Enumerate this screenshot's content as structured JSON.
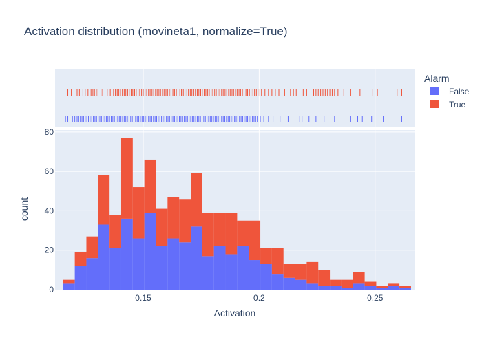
{
  "chart_data": {
    "type": "bar",
    "barmode": "stack",
    "title": "Activation distribution (movineta1, normalize=True)",
    "xlabel": "Activation",
    "ylabel": "count",
    "xlim": [
      0.112,
      0.267
    ],
    "ylim": [
      0,
      81
    ],
    "x_ticks": [
      0.15,
      0.2,
      0.25
    ],
    "x_tick_labels": [
      "0.15",
      "0.2",
      "0.25"
    ],
    "y_ticks": [
      0,
      20,
      40,
      60,
      80
    ],
    "y_tick_labels": [
      "0",
      "20",
      "40",
      "60",
      "80"
    ],
    "grid": true,
    "legend_title": "Alarm",
    "legend_position": "top-right",
    "bin_start": 0.1155,
    "bin_width": 0.005,
    "series": [
      {
        "name": "False",
        "color": "#636efa",
        "values": [
          3,
          12,
          16,
          33,
          21,
          36,
          26,
          39,
          22,
          26,
          24,
          32,
          17,
          22,
          18,
          22,
          15,
          13,
          8,
          6,
          5,
          3,
          2,
          2,
          1,
          3,
          2,
          1,
          2,
          1
        ]
      },
      {
        "name": "True",
        "color": "#ef553b",
        "values": [
          2,
          7,
          11,
          25,
          17,
          41,
          26,
          27,
          19,
          21,
          22,
          27,
          22,
          17,
          21,
          13,
          20,
          8,
          13,
          7,
          8,
          11,
          8,
          3,
          4,
          6,
          2,
          1,
          1,
          1
        ]
      }
    ],
    "rug": {
      "True": [
        0.1175,
        0.119,
        0.1215,
        0.1225,
        0.124,
        0.125,
        0.1262,
        0.1275,
        0.1283,
        0.129,
        0.1298,
        0.1305,
        0.1318,
        0.1325,
        0.1345,
        0.1358,
        0.1365,
        0.1372,
        0.138,
        0.1388,
        0.1395,
        0.1402,
        0.141,
        0.1418,
        0.1425,
        0.1433,
        0.144,
        0.1448,
        0.1455,
        0.1463,
        0.147,
        0.1478,
        0.1485,
        0.1493,
        0.15,
        0.1508,
        0.1515,
        0.1523,
        0.153,
        0.1538,
        0.1545,
        0.1553,
        0.156,
        0.1568,
        0.1575,
        0.1583,
        0.159,
        0.1598,
        0.1605,
        0.1613,
        0.162,
        0.1628,
        0.1635,
        0.1643,
        0.165,
        0.1658,
        0.1665,
        0.1673,
        0.168,
        0.1688,
        0.1695,
        0.1703,
        0.171,
        0.1718,
        0.1725,
        0.1733,
        0.174,
        0.1748,
        0.1755,
        0.1763,
        0.177,
        0.1778,
        0.1785,
        0.1793,
        0.18,
        0.1808,
        0.1815,
        0.1823,
        0.183,
        0.1838,
        0.1845,
        0.1853,
        0.186,
        0.1868,
        0.1875,
        0.1883,
        0.189,
        0.1898,
        0.1905,
        0.1913,
        0.192,
        0.1928,
        0.1935,
        0.1943,
        0.195,
        0.1958,
        0.1965,
        0.1973,
        0.198,
        0.1988,
        0.1995,
        0.2003,
        0.201,
        0.2025,
        0.204,
        0.2055,
        0.207,
        0.2085,
        0.211,
        0.2135,
        0.2148,
        0.216,
        0.219,
        0.2205,
        0.2235,
        0.2245,
        0.2255,
        0.2265,
        0.2275,
        0.2285,
        0.2295,
        0.2305,
        0.2315,
        0.2325,
        0.234,
        0.2365,
        0.2395,
        0.2435,
        0.249,
        0.251,
        0.2595,
        0.2615
      ],
      "False": [
        0.1165,
        0.1175,
        0.1195,
        0.1205,
        0.1215,
        0.1222,
        0.1229,
        0.1236,
        0.1243,
        0.125,
        0.1257,
        0.1264,
        0.1271,
        0.1278,
        0.1285,
        0.1292,
        0.1299,
        0.1306,
        0.1313,
        0.132,
        0.1327,
        0.1334,
        0.1341,
        0.1348,
        0.1355,
        0.1362,
        0.1369,
        0.1376,
        0.1383,
        0.139,
        0.1397,
        0.1404,
        0.1411,
        0.1418,
        0.1425,
        0.1432,
        0.1439,
        0.1446,
        0.1453,
        0.146,
        0.1467,
        0.1474,
        0.1481,
        0.1488,
        0.1495,
        0.1502,
        0.1509,
        0.1516,
        0.1523,
        0.153,
        0.1537,
        0.1544,
        0.1551,
        0.1558,
        0.1565,
        0.1572,
        0.1579,
        0.1586,
        0.1593,
        0.16,
        0.1607,
        0.1614,
        0.1621,
        0.1628,
        0.1635,
        0.1642,
        0.1649,
        0.1656,
        0.1663,
        0.167,
        0.1677,
        0.1684,
        0.1691,
        0.1698,
        0.1705,
        0.1712,
        0.1719,
        0.1726,
        0.1733,
        0.174,
        0.1747,
        0.1754,
        0.1761,
        0.1768,
        0.1775,
        0.1782,
        0.1789,
        0.1796,
        0.1803,
        0.181,
        0.1817,
        0.1824,
        0.1831,
        0.1838,
        0.1845,
        0.1852,
        0.1859,
        0.1866,
        0.1873,
        0.188,
        0.1887,
        0.1894,
        0.1901,
        0.1908,
        0.1915,
        0.1922,
        0.1929,
        0.1936,
        0.1943,
        0.195,
        0.1957,
        0.1964,
        0.1971,
        0.1978,
        0.1985,
        0.1992,
        0.2005,
        0.202,
        0.204,
        0.206,
        0.209,
        0.2125,
        0.2175,
        0.2185,
        0.2215,
        0.2245,
        0.228,
        0.2325,
        0.2395,
        0.2425,
        0.2445,
        0.2485,
        0.2535,
        0.2615
      ]
    }
  }
}
